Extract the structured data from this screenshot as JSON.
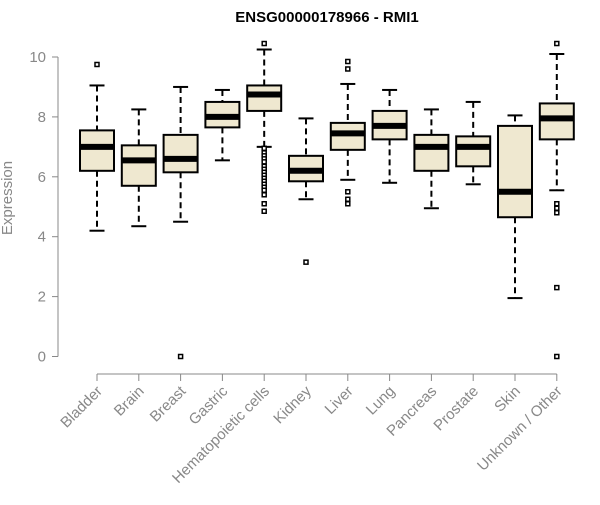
{
  "chart_data": {
    "type": "boxplot",
    "title": "ENSG00000178966 - RMI1",
    "xlabel": "",
    "ylabel": "Expression",
    "ylim": [
      0,
      10.5
    ],
    "yticks": [
      0,
      2,
      4,
      6,
      8,
      10
    ],
    "colors": {
      "box_fill": "#efe8d0",
      "stroke": "#000000",
      "axis": "#888888"
    },
    "categories": [
      "Bladder",
      "Brain",
      "Breast",
      "Gastric",
      "Hematopoietic cells",
      "Kidney",
      "Liver",
      "Lung",
      "Pancreas",
      "Prostate",
      "Skin",
      "Unknown / Other"
    ],
    "boxes": [
      {
        "name": "Bladder",
        "whisker_low": 4.2,
        "q1": 6.2,
        "median": 7.0,
        "q3": 7.55,
        "whisker_high": 9.05,
        "outliers": [
          9.75
        ]
      },
      {
        "name": "Brain",
        "whisker_low": 4.35,
        "q1": 5.7,
        "median": 6.55,
        "q3": 7.05,
        "whisker_high": 8.25,
        "outliers": []
      },
      {
        "name": "Breast",
        "whisker_low": 4.5,
        "q1": 6.15,
        "median": 6.6,
        "q3": 7.4,
        "whisker_high": 9.0,
        "outliers": [
          0.0
        ]
      },
      {
        "name": "Gastric",
        "whisker_low": 6.55,
        "q1": 7.65,
        "median": 8.0,
        "q3": 8.5,
        "whisker_high": 8.9,
        "outliers": []
      },
      {
        "name": "Hematopoietic cells",
        "whisker_low": 7.0,
        "q1": 8.2,
        "median": 8.75,
        "q3": 9.05,
        "whisker_high": 10.25,
        "outliers": [
          10.45,
          6.95,
          6.8,
          6.7,
          6.6,
          6.5,
          6.35,
          6.25,
          6.15,
          6.05,
          5.95,
          5.85,
          5.75,
          5.65,
          5.55,
          5.4,
          5.1,
          4.85
        ]
      },
      {
        "name": "Kidney",
        "whisker_low": 5.25,
        "q1": 5.85,
        "median": 6.2,
        "q3": 6.7,
        "whisker_high": 7.95,
        "outliers": [
          3.15
        ]
      },
      {
        "name": "Liver",
        "whisker_low": 5.9,
        "q1": 6.9,
        "median": 7.45,
        "q3": 7.8,
        "whisker_high": 9.1,
        "outliers": [
          9.85,
          9.6,
          5.5,
          5.25,
          5.1
        ]
      },
      {
        "name": "Lung",
        "whisker_low": 5.8,
        "q1": 7.25,
        "median": 7.7,
        "q3": 8.2,
        "whisker_high": 8.9,
        "outliers": []
      },
      {
        "name": "Pancreas",
        "whisker_low": 4.95,
        "q1": 6.2,
        "median": 7.0,
        "q3": 7.4,
        "whisker_high": 8.25,
        "outliers": []
      },
      {
        "name": "Prostate",
        "whisker_low": 5.75,
        "q1": 6.35,
        "median": 7.0,
        "q3": 7.35,
        "whisker_high": 8.5,
        "outliers": []
      },
      {
        "name": "Skin",
        "whisker_low": 1.95,
        "q1": 4.65,
        "median": 5.5,
        "q3": 7.7,
        "whisker_high": 8.05,
        "outliers": []
      },
      {
        "name": "Unknown / Other",
        "whisker_low": 5.55,
        "q1": 7.25,
        "median": 7.95,
        "q3": 8.45,
        "whisker_high": 10.1,
        "outliers": [
          10.45,
          5.1,
          4.95,
          4.8,
          2.3,
          0.0
        ]
      }
    ]
  }
}
